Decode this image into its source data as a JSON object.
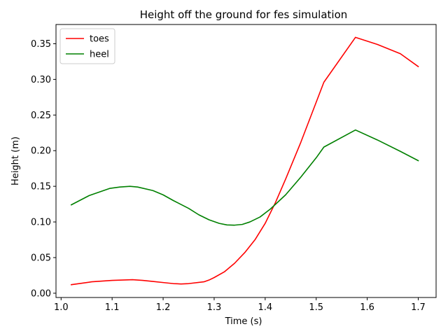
{
  "chart_data": {
    "type": "line",
    "title": "Height off the ground for fes simulation",
    "xlabel": "Time (s)",
    "ylabel": "Height (m)",
    "xlim": [
      0.99,
      1.735
    ],
    "ylim": [
      -0.006,
      0.377
    ],
    "xticks": [
      1.0,
      1.1,
      1.2,
      1.3,
      1.4,
      1.5,
      1.6,
      1.7
    ],
    "xtick_labels": [
      "1.0",
      "1.1",
      "1.2",
      "1.3",
      "1.4",
      "1.5",
      "1.6",
      "1.7"
    ],
    "yticks": [
      0.0,
      0.05,
      0.1,
      0.15,
      0.2,
      0.25,
      0.3,
      0.35
    ],
    "ytick_labels": [
      "0.00",
      "0.05",
      "0.10",
      "0.15",
      "0.20",
      "0.25",
      "0.30",
      "0.35"
    ],
    "grid": false,
    "legend_position": "top-left",
    "series": [
      {
        "name": "toes",
        "color": "#ff0000",
        "x": [
          1.02,
          1.06,
          1.1,
          1.12,
          1.14,
          1.16,
          1.18,
          1.2,
          1.22,
          1.235,
          1.25,
          1.28,
          1.29,
          1.3,
          1.32,
          1.34,
          1.36,
          1.38,
          1.4,
          1.42,
          1.44,
          1.47,
          1.5,
          1.515,
          1.577,
          1.62,
          1.665,
          1.7
        ],
        "y": [
          0.012,
          0.016,
          0.018,
          0.0185,
          0.019,
          0.018,
          0.0165,
          0.015,
          0.0135,
          0.013,
          0.0135,
          0.016,
          0.0185,
          0.022,
          0.03,
          0.042,
          0.057,
          0.075,
          0.098,
          0.127,
          0.16,
          0.212,
          0.268,
          0.296,
          0.359,
          0.349,
          0.336,
          0.318
        ]
      },
      {
        "name": "heel",
        "color": "#008000",
        "x": [
          1.02,
          1.055,
          1.095,
          1.115,
          1.135,
          1.15,
          1.18,
          1.2,
          1.22,
          1.25,
          1.27,
          1.29,
          1.31,
          1.325,
          1.34,
          1.355,
          1.37,
          1.39,
          1.41,
          1.44,
          1.47,
          1.5,
          1.515,
          1.577,
          1.62,
          1.665,
          1.7
        ],
        "y": [
          0.124,
          0.137,
          0.147,
          0.149,
          0.15,
          0.149,
          0.144,
          0.138,
          0.13,
          0.119,
          0.11,
          0.103,
          0.098,
          0.0958,
          0.0955,
          0.0965,
          0.1,
          0.107,
          0.118,
          0.138,
          0.163,
          0.19,
          0.205,
          0.229,
          0.215,
          0.199,
          0.186
        ]
      }
    ]
  }
}
